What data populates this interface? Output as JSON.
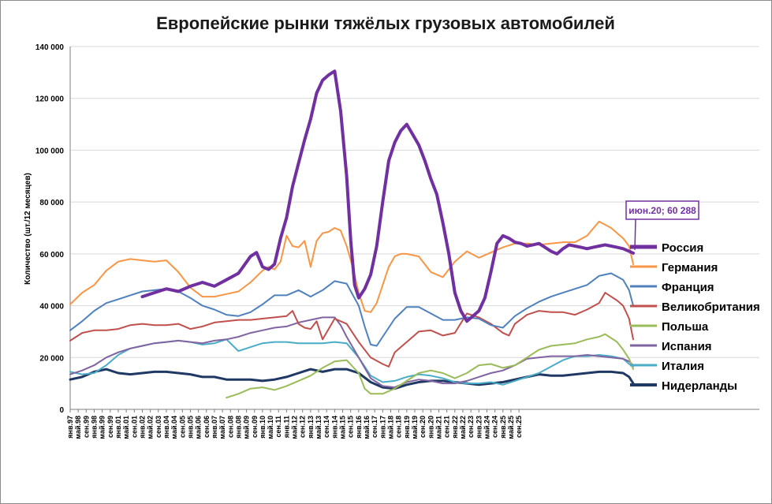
{
  "chart_data": {
    "type": "line",
    "title": "Европейские рынки тяжёлых грузовых автомобилей",
    "ylabel": "Количество  (шт./12 месяцев)",
    "xlabel": "",
    "ylim": [
      0,
      140000
    ],
    "yticks": [
      0,
      20000,
      40000,
      60000,
      80000,
      100000,
      120000,
      140000
    ],
    "ytick_labels": [
      "0",
      "20 000",
      "40 000",
      "60 000",
      "80 000",
      "100 000",
      "120 000",
      "140 000"
    ],
    "x_range": [
      1997.0,
      2025.667
    ],
    "xtick_labels": [
      "янв.97",
      "май.98",
      "сен.99",
      "янв.98",
      "май.99",
      "сен.99",
      "янв.01",
      "май.01",
      "сен.01",
      "янв.02",
      "май.02",
      "сен.03",
      "янв.04",
      "май.04",
      "сен.05",
      "янв.05",
      "май.06",
      "сен.06",
      "янв.07",
      "май.07",
      "сен.08",
      "янв.08",
      "май.09",
      "сен.09",
      "янв.10",
      "май.10",
      "сен.11",
      "янв.11",
      "май.12",
      "сен.12",
      "янв.13",
      "май.13",
      "сен.14",
      "янв.14",
      "май.15",
      "сен.15",
      "янв.16",
      "май.16",
      "сен.17",
      "янв.17",
      "май.18",
      "сен.18",
      "янв.19",
      "май.19",
      "сен.20",
      "янв.20",
      "май.21",
      "сен.21",
      "янв.22",
      "май.22",
      "сен.23",
      "янв.23",
      "май.24",
      "сен.24",
      "янв.25",
      "май.25",
      "сен.25"
    ],
    "xtick_positions": [
      1997.0,
      1997.333,
      1997.667,
      1998.0,
      1998.333,
      1998.667,
      1999.0,
      1999.333,
      1999.667,
      2000.0,
      2000.333,
      2000.667,
      2001.0,
      2001.333,
      2001.667,
      2002.0,
      2002.333,
      2002.667,
      2003.0,
      2003.333,
      2003.667,
      2004.0,
      2004.333,
      2004.667,
      2005.0,
      2005.333,
      2005.667,
      2006.0,
      2006.333,
      2006.667,
      2007.0,
      2007.333,
      2007.667,
      2008.0,
      2008.333,
      2008.667,
      2009.0,
      2009.333,
      2009.667,
      2010.0,
      2010.333,
      2010.667,
      2011.0,
      2011.333,
      2011.667,
      2012.0,
      2012.333,
      2012.667,
      2013.0,
      2013.333,
      2013.667,
      2014.0,
      2014.333,
      2014.667,
      2015.0,
      2015.333,
      2015.667
    ],
    "series": [
      {
        "name": "Россия",
        "color": "#7030a0",
        "width": 4,
        "x": [
          2000.0,
          2000.5,
          2001.0,
          2001.5,
          2002.0,
          2002.5,
          2003.0,
          2003.5,
          2004.0,
          2004.5,
          2004.75,
          2005.0,
          2005.25,
          2005.5,
          2005.75,
          2006.0,
          2006.25,
          2006.5,
          2006.75,
          2007.0,
          2007.25,
          2007.5,
          2007.75,
          2008.0,
          2008.25,
          2008.5,
          2008.67,
          2008.83,
          2009.0,
          2009.25,
          2009.5,
          2009.75,
          2010.0,
          2010.25,
          2010.5,
          2010.75,
          2011.0,
          2011.25,
          2011.5,
          2011.75,
          2012.0,
          2012.25,
          2012.5,
          2012.75,
          2013.0,
          2013.25,
          2013.5,
          2013.75,
          2014.0,
          2014.25,
          2014.5,
          2014.75,
          2015.0,
          2015.25,
          2015.5,
          2015.75,
          2016.0,
          2016.25,
          2016.5,
          2016.75,
          2017.0,
          2017.25,
          2017.5,
          2017.75,
          2018.0,
          2018.25,
          2018.5,
          2018.75,
          2019.0,
          2019.25,
          2019.5,
          2019.75,
          2020.0,
          2020.25,
          2020.42
        ],
        "values": [
          43500,
          45000,
          46500,
          45500,
          47500,
          49000,
          47500,
          50000,
          52500,
          59000,
          60500,
          55000,
          54000,
          56000,
          66000,
          74000,
          86000,
          95000,
          104000,
          112000,
          122000,
          127000,
          129000,
          130500,
          115000,
          90000,
          65000,
          48000,
          43000,
          46500,
          52000,
          63000,
          80000,
          96000,
          103000,
          107500,
          110000,
          106000,
          102000,
          96000,
          89000,
          83000,
          72000,
          60000,
          45000,
          38000,
          34000,
          36000,
          38000,
          43000,
          53000,
          64000,
          67000,
          66000,
          64500,
          64000,
          63000,
          63500,
          64000,
          62500,
          61000,
          60000,
          62000,
          63500,
          63000,
          62500,
          62000,
          62500,
          63000,
          63500,
          63000,
          62500,
          62000,
          61000,
          60288
        ]
      },
      {
        "name": "Германия",
        "color": "#f79646",
        "width": 2,
        "x": [
          1997.0,
          1997.5,
          1998.0,
          1998.5,
          1999.0,
          1999.5,
          2000.0,
          2000.5,
          2001.0,
          2001.5,
          2002.0,
          2002.5,
          2003.0,
          2003.5,
          2004.0,
          2004.5,
          2005.0,
          2005.25,
          2005.5,
          2005.75,
          2006.0,
          2006.25,
          2006.5,
          2006.75,
          2007.0,
          2007.25,
          2007.5,
          2007.75,
          2008.0,
          2008.25,
          2008.5,
          2008.75,
          2009.0,
          2009.25,
          2009.5,
          2009.75,
          2010.0,
          2010.25,
          2010.5,
          2010.75,
          2011.0,
          2011.5,
          2012.0,
          2012.5,
          2013.0,
          2013.5,
          2014.0,
          2014.5,
          2015.0,
          2015.5,
          2016.0,
          2016.5,
          2017.0,
          2017.5,
          2018.0,
          2018.5,
          2019.0,
          2019.5,
          2020.0,
          2020.25,
          2020.42
        ],
        "values": [
          40500,
          45000,
          48000,
          53500,
          57000,
          58000,
          57500,
          57000,
          57500,
          53000,
          47000,
          43500,
          43500,
          44500,
          45500,
          49000,
          53500,
          55000,
          54000,
          57000,
          67000,
          63000,
          62500,
          65000,
          55000,
          65000,
          68000,
          68500,
          70000,
          69000,
          63000,
          55000,
          45000,
          38000,
          37500,
          41000,
          48000,
          55000,
          59000,
          60000,
          60000,
          59000,
          53000,
          51000,
          57000,
          61000,
          58500,
          60500,
          62500,
          64000,
          64000,
          63500,
          64000,
          64500,
          64500,
          67000,
          72500,
          70000,
          66000,
          63000,
          56000
        ]
      },
      {
        "name": "Франция",
        "color": "#4f81bd",
        "width": 2,
        "x": [
          1997.0,
          1997.5,
          1998.0,
          1998.5,
          1999.0,
          1999.5,
          2000.0,
          2000.5,
          2001.0,
          2001.5,
          2002.0,
          2002.5,
          2003.0,
          2003.5,
          2004.0,
          2004.5,
          2005.0,
          2005.5,
          2006.0,
          2006.5,
          2007.0,
          2007.5,
          2008.0,
          2008.5,
          2009.0,
          2009.25,
          2009.5,
          2009.75,
          2010.0,
          2010.5,
          2011.0,
          2011.5,
          2012.0,
          2012.5,
          2013.0,
          2013.5,
          2014.0,
          2014.5,
          2015.0,
          2015.5,
          2016.0,
          2016.5,
          2017.0,
          2017.5,
          2018.0,
          2018.5,
          2019.0,
          2019.5,
          2020.0,
          2020.25,
          2020.42
        ],
        "values": [
          30500,
          34000,
          38000,
          41000,
          42500,
          44000,
          45500,
          46000,
          46500,
          45500,
          43000,
          40000,
          38500,
          36500,
          36000,
          37500,
          40500,
          44000,
          44000,
          46000,
          43500,
          46000,
          49500,
          48500,
          40000,
          32000,
          25000,
          24500,
          28000,
          35000,
          39500,
          39500,
          37000,
          34500,
          34500,
          35500,
          35000,
          32500,
          31500,
          36000,
          39000,
          41500,
          43500,
          45000,
          46500,
          48000,
          51500,
          52500,
          50000,
          46000,
          40000
        ]
      },
      {
        "name": "Великобритания",
        "color": "#c0504d",
        "width": 2,
        "x": [
          1997.0,
          1997.5,
          1998.0,
          1998.5,
          1999.0,
          1999.5,
          2000.0,
          2000.5,
          2001.0,
          2001.5,
          2002.0,
          2002.5,
          2003.0,
          2003.5,
          2004.0,
          2004.5,
          2005.0,
          2005.5,
          2006.0,
          2006.25,
          2006.5,
          2006.75,
          2007.0,
          2007.25,
          2007.5,
          2008.0,
          2008.5,
          2009.0,
          2009.5,
          2010.0,
          2010.25,
          2010.5,
          2011.0,
          2011.5,
          2012.0,
          2012.5,
          2013.0,
          2013.5,
          2014.0,
          2014.5,
          2015.0,
          2015.25,
          2015.5,
          2016.0,
          2016.5,
          2017.0,
          2017.5,
          2018.0,
          2018.5,
          2019.0,
          2019.25,
          2019.5,
          2019.75,
          2020.0,
          2020.25,
          2020.42
        ],
        "values": [
          26500,
          29500,
          30500,
          30500,
          31000,
          32500,
          33000,
          32500,
          32500,
          33000,
          31000,
          32000,
          33500,
          34000,
          34500,
          34500,
          35000,
          35500,
          36000,
          38000,
          33000,
          31500,
          31000,
          34000,
          27000,
          35000,
          33000,
          26000,
          20000,
          17500,
          16500,
          22000,
          26000,
          30000,
          30500,
          28500,
          29500,
          37000,
          35500,
          33000,
          29500,
          28500,
          33000,
          36500,
          38000,
          37500,
          37500,
          36500,
          38500,
          41000,
          45000,
          43500,
          42000,
          40000,
          35000,
          27000
        ]
      },
      {
        "name": "Польша",
        "color": "#9bbb59",
        "width": 2,
        "x": [
          2003.5,
          2004.0,
          2004.5,
          2005.0,
          2005.5,
          2006.0,
          2006.5,
          2007.0,
          2007.5,
          2008.0,
          2008.5,
          2009.0,
          2009.25,
          2009.5,
          2010.0,
          2010.5,
          2011.0,
          2011.5,
          2012.0,
          2012.5,
          2013.0,
          2013.5,
          2014.0,
          2014.5,
          2015.0,
          2015.5,
          2016.0,
          2016.5,
          2017.0,
          2017.5,
          2018.0,
          2018.5,
          2019.0,
          2019.25,
          2019.5,
          2019.75,
          2020.0,
          2020.25,
          2020.42
        ],
        "values": [
          4500,
          6000,
          8000,
          8500,
          7500,
          9000,
          11000,
          13000,
          16000,
          18500,
          19000,
          14000,
          8000,
          6000,
          6000,
          8000,
          11000,
          14000,
          15000,
          14000,
          12000,
          14000,
          17000,
          17500,
          16000,
          17000,
          20000,
          23000,
          24500,
          25000,
          25500,
          27000,
          28000,
          29000,
          27500,
          26000,
          23000,
          19500,
          15500
        ]
      },
      {
        "name": "Испания",
        "color": "#8064a2",
        "width": 2,
        "x": [
          1997.0,
          1997.5,
          1998.0,
          1998.5,
          1999.0,
          1999.5,
          2000.0,
          2000.5,
          2001.0,
          2001.5,
          2002.0,
          2002.5,
          2003.0,
          2003.5,
          2004.0,
          2004.5,
          2005.0,
          2005.5,
          2006.0,
          2006.5,
          2007.0,
          2007.5,
          2008.0,
          2008.25,
          2008.5,
          2009.0,
          2009.5,
          2010.0,
          2010.5,
          2011.0,
          2011.5,
          2012.0,
          2012.5,
          2013.0,
          2013.5,
          2014.0,
          2014.5,
          2015.0,
          2015.5,
          2016.0,
          2016.5,
          2017.0,
          2017.5,
          2018.0,
          2018.5,
          2019.0,
          2019.5,
          2020.0,
          2020.25,
          2020.42
        ],
        "values": [
          13500,
          15000,
          17000,
          20000,
          22000,
          23500,
          24500,
          25500,
          26000,
          26500,
          26000,
          25500,
          26500,
          27000,
          28000,
          29500,
          30500,
          31500,
          32000,
          33500,
          34500,
          35500,
          35500,
          32500,
          28000,
          20000,
          12000,
          9000,
          8500,
          10500,
          11500,
          11000,
          10000,
          10000,
          11000,
          12500,
          14000,
          15000,
          17000,
          19500,
          20000,
          20500,
          20500,
          20500,
          21000,
          20500,
          20000,
          19500,
          18500,
          17000
        ]
      },
      {
        "name": "Италия",
        "color": "#4bacc6",
        "width": 2,
        "x": [
          1997.0,
          1997.5,
          1998.0,
          1998.5,
          1999.0,
          1999.5,
          2000.0,
          2000.5,
          2001.0,
          2001.5,
          2002.0,
          2002.5,
          2003.0,
          2003.5,
          2004.0,
          2004.5,
          2005.0,
          2005.5,
          2006.0,
          2006.5,
          2007.0,
          2007.5,
          2008.0,
          2008.5,
          2009.0,
          2009.5,
          2010.0,
          2010.5,
          2011.0,
          2011.5,
          2012.0,
          2012.5,
          2013.0,
          2013.5,
          2014.0,
          2014.5,
          2015.0,
          2015.5,
          2016.0,
          2016.5,
          2017.0,
          2017.5,
          2018.0,
          2018.5,
          2019.0,
          2019.5,
          2020.0,
          2020.25,
          2020.42
        ],
        "values": [
          14500,
          13500,
          14000,
          17000,
          21000,
          23500,
          24500,
          25500,
          26000,
          26500,
          26000,
          25000,
          25500,
          27000,
          22500,
          24000,
          25500,
          26000,
          26000,
          25500,
          25500,
          25500,
          26000,
          25500,
          20000,
          13000,
          10500,
          11000,
          12500,
          13500,
          13000,
          12000,
          10500,
          10000,
          10000,
          10500,
          9500,
          11000,
          12500,
          14000,
          16500,
          19000,
          20500,
          20500,
          21000,
          20500,
          19500,
          17500,
          16500
        ]
      },
      {
        "name": "Нидерланды",
        "color": "#1f3864",
        "width": 3,
        "x": [
          1997.0,
          1997.5,
          1998.0,
          1998.5,
          1999.0,
          1999.5,
          2000.0,
          2000.5,
          2001.0,
          2001.5,
          2002.0,
          2002.5,
          2003.0,
          2003.5,
          2004.0,
          2004.5,
          2005.0,
          2005.5,
          2006.0,
          2006.5,
          2007.0,
          2007.25,
          2007.5,
          2008.0,
          2008.5,
          2009.0,
          2009.5,
          2010.0,
          2010.5,
          2011.0,
          2011.5,
          2012.0,
          2012.5,
          2013.0,
          2013.5,
          2014.0,
          2014.5,
          2015.0,
          2015.5,
          2016.0,
          2016.5,
          2017.0,
          2017.5,
          2018.0,
          2018.5,
          2019.0,
          2019.5,
          2020.0,
          2020.25,
          2020.42
        ],
        "values": [
          11500,
          12500,
          14500,
          15500,
          14000,
          13500,
          14000,
          14500,
          14500,
          14000,
          13500,
          12500,
          12500,
          11500,
          11500,
          11500,
          11000,
          11500,
          12500,
          14000,
          15500,
          15000,
          14500,
          15500,
          15500,
          14000,
          10500,
          8500,
          8000,
          9500,
          10500,
          11000,
          11000,
          10500,
          10000,
          9500,
          10000,
          10500,
          11500,
          12500,
          13500,
          13000,
          13000,
          13500,
          14000,
          14500,
          14500,
          14000,
          12500,
          10000
        ]
      }
    ],
    "annotation": {
      "text": "июн.20;  60 288",
      "x": 2020.42,
      "y": 60288,
      "series": "Россия"
    },
    "legend_placement": "right"
  }
}
